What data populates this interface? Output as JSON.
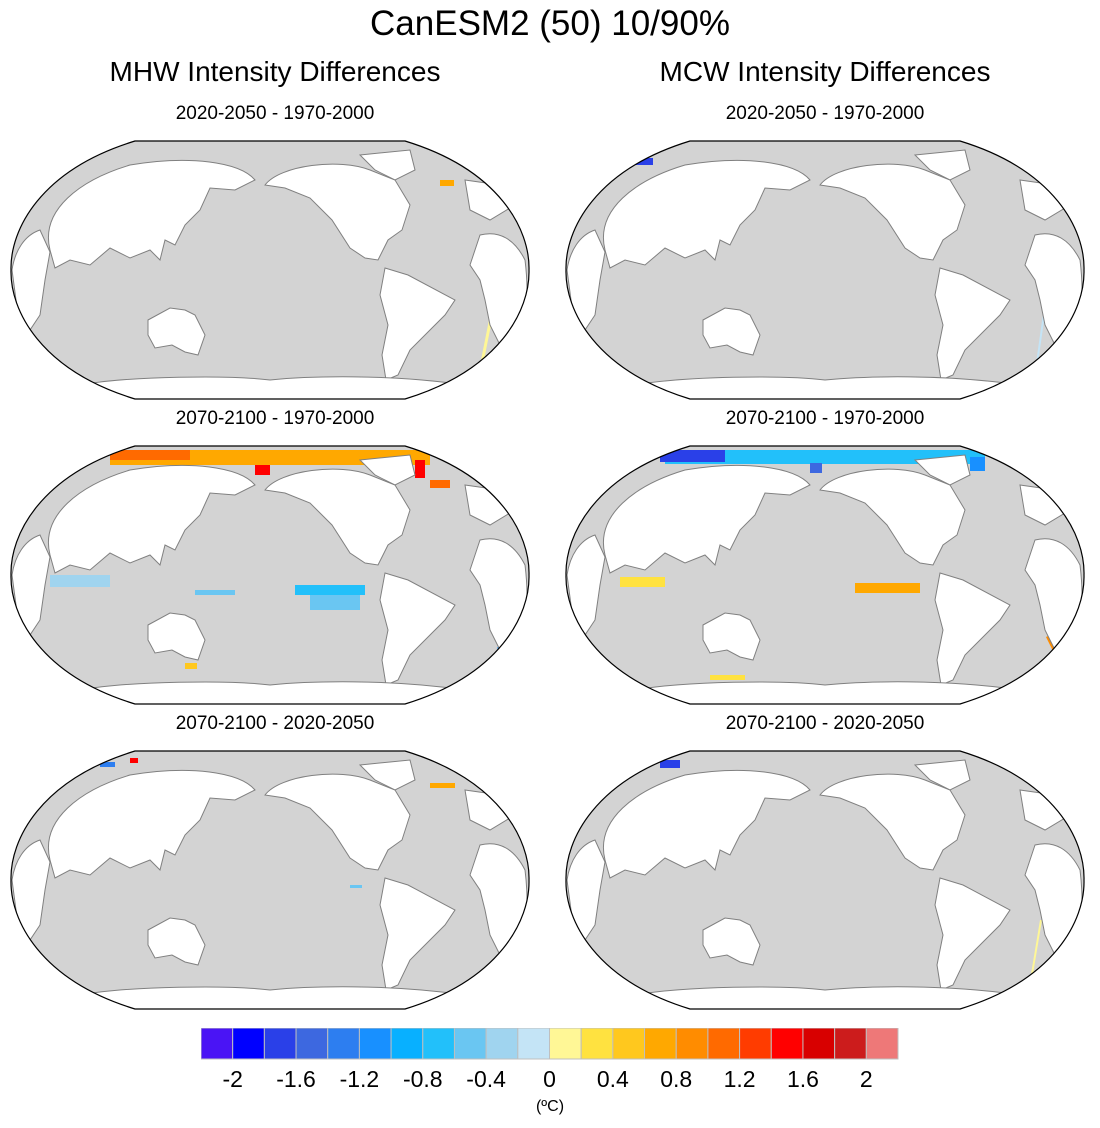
{
  "chart_data": {
    "type": "heatmap",
    "title": "CanESM2 (50) 10/90%",
    "projection": "Robinson (Pacific-centered)",
    "columns": [
      {
        "title": "MHW Intensity Differences"
      },
      {
        "title": "MCW Intensity Differences"
      }
    ],
    "panels": [
      {
        "column": 0,
        "row": 0,
        "subtitle": "2020-2050 - 1970-2000",
        "description": "Mostly no significant change; small orange patch in North Atlantic (~0.6), faint light-yellow/blue streak in South Atlantic"
      },
      {
        "column": 1,
        "row": 0,
        "subtitle": "2020-2050 - 1970-2000",
        "description": "Mostly no significant change; small dark-blue patch in Arctic (~-1.8)"
      },
      {
        "column": 0,
        "row": 1,
        "subtitle": "2070-2100 - 1970-2000",
        "description": "Strong Arctic warming (orange/red, ~0.8 to 1.6); light/medium blue patches in Indian Ocean and eastern equatorial Pacific (~-0.4 to -0.8); scattered Southern Ocean blue/yellow bands"
      },
      {
        "column": 1,
        "row": 1,
        "subtitle": "2070-2100 - 1970-2000",
        "description": "Arctic cooling (blue, ~-0.8 to -2); orange band in eastern equatorial Pacific (~0.6); yellow/orange band across Southern Ocean (~0.4)"
      },
      {
        "column": 0,
        "row": 2,
        "subtitle": "2070-2100 - 2020-2050",
        "description": "Mostly no significant change; small blue and red patches in Arctic, orange patch in North Atlantic"
      },
      {
        "column": 1,
        "row": 2,
        "subtitle": "2070-2100 - 2020-2050",
        "description": "Mostly no significant change; small blue patch in Arctic, faint yellow/orange streak in South Atlantic"
      }
    ],
    "colorbar": {
      "units": "(ºC)",
      "tick_labels": [
        "-2",
        "-1.6",
        "-1.2",
        "-0.8",
        "-0.4",
        "0",
        "0.4",
        "0.8",
        "1.2",
        "1.6",
        "2"
      ],
      "range": [
        -2.2,
        2.2
      ],
      "levels": 21,
      "colors": [
        "#4a14f5",
        "#0000ff",
        "#2a40e8",
        "#3d68e0",
        "#2d7ef0",
        "#1890ff",
        "#08b0ff",
        "#22c0fa",
        "#6ac6f2",
        "#a0d4ef",
        "#c4e4f6",
        "#fff796",
        "#ffe240",
        "#ffc81e",
        "#ffa800",
        "#ff8c00",
        "#ff6a00",
        "#ff3c00",
        "#ff0000",
        "#d80000",
        "#cc1c1c",
        "#ee7878"
      ]
    },
    "ocean_color": "#d3d3d3",
    "land_color": "#ffffff",
    "coast_color": "#808080"
  }
}
